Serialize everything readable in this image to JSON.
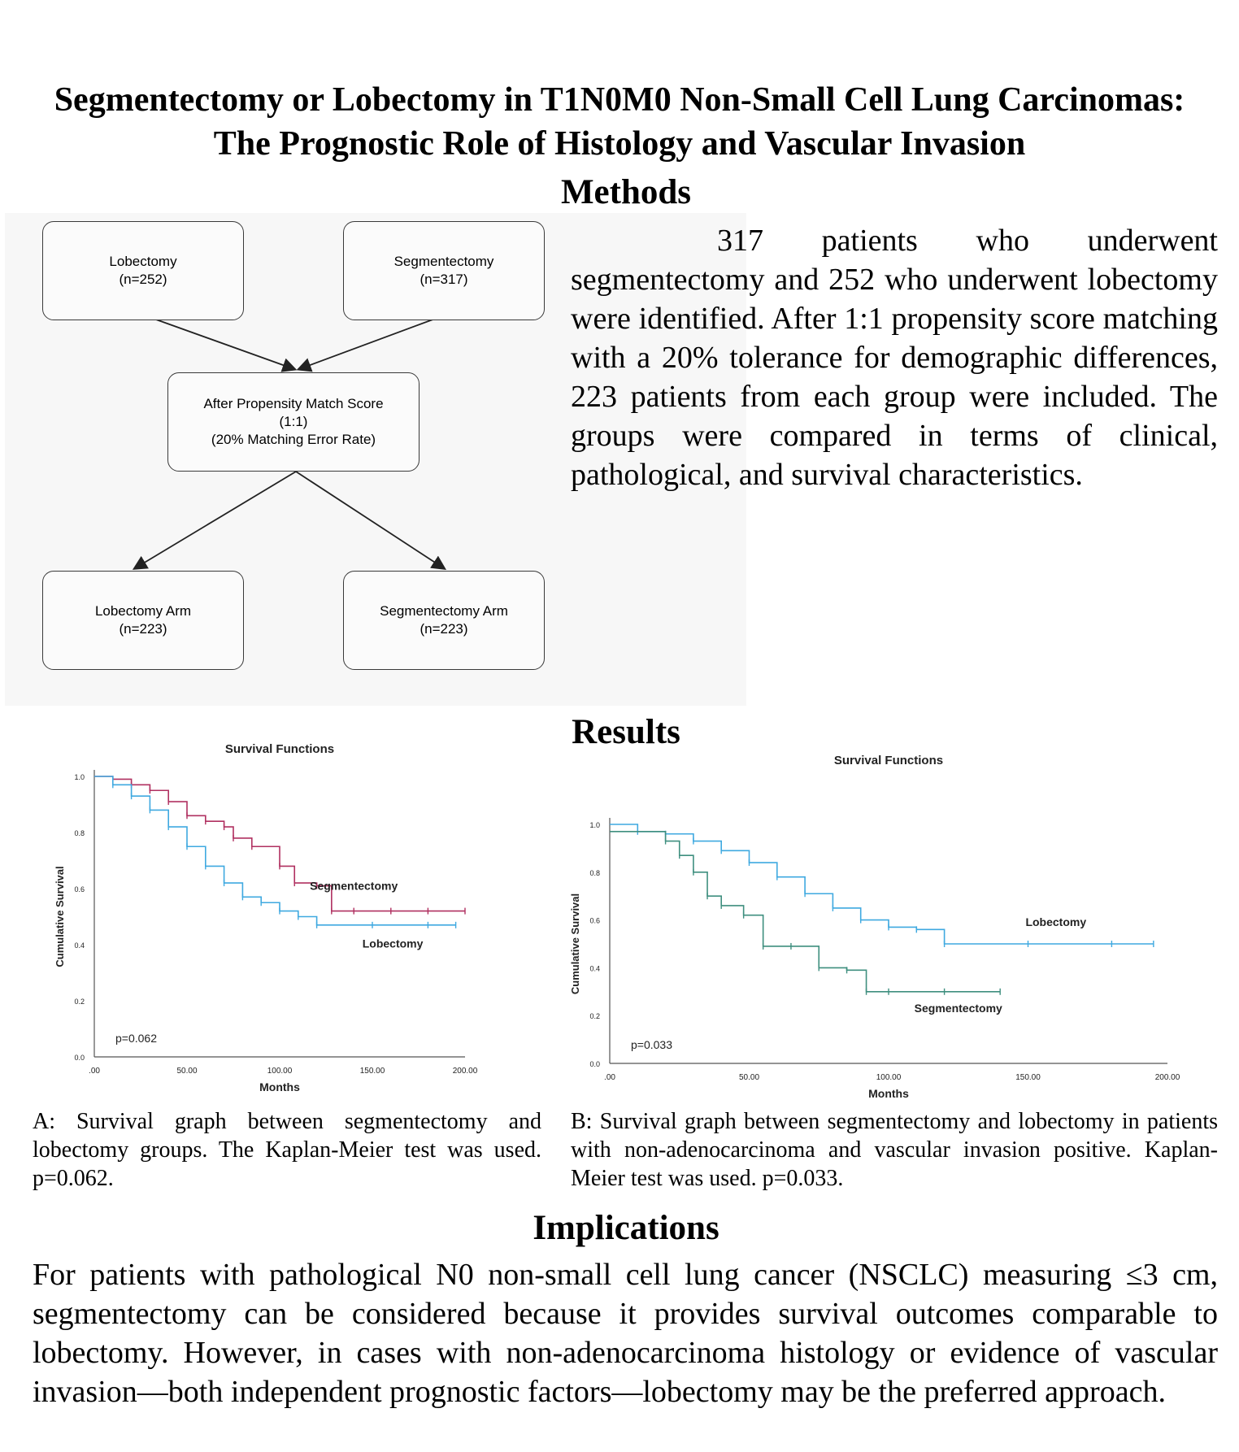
{
  "title": {
    "line1": "Segmentectomy or Lobectomy in T1N0M0 Non-Small Cell Lung Carcinomas:",
    "line2": "The Prognostic Role of Histology and Vascular Invasion"
  },
  "methods": {
    "heading": "Methods",
    "text": "317 patients who underwent segmentectomy and 252 who underwent lobectomy were identified. After 1:1 propensity score matching with a 20% tolerance for demographic differences, 223 patients from each group were included. The groups were compared in terms of clinical, pathological, and survival characteristics."
  },
  "flowchart": {
    "lobectomy": {
      "line1": "Lobectomy",
      "line2": "(n=252)"
    },
    "segmentectomy": {
      "line1": "Segmentectomy",
      "line2": "(n=317)"
    },
    "match": {
      "line1": "After Propensity Match Score",
      "line2": "(1:1)",
      "line3": "(20% Matching Error Rate)"
    },
    "lobectomy_arm": {
      "line1": "Lobectomy Arm",
      "line2": "(n=223)"
    },
    "segmentectomy_arm": {
      "line1": "Segmentectomy Arm",
      "line2": "(n=223)"
    }
  },
  "results": {
    "heading": "Results",
    "caption_a": "A: Survival graph between segmentectomy and lobectomy groups. The Kaplan-Meier test was used. p=0.062.",
    "caption_b": "B: Survival graph between segmentectomy and lobectomy in patients with non-adenocarcinoma and vascular invasion positive. Kaplan-Meier test was used. p=0.033."
  },
  "implications": {
    "heading": "Implications",
    "text": "For patients with pathological N0 non-small cell lung cancer (NSCLC) measuring ≤3 cm, segmentectomy can be considered because it provides survival outcomes comparable to lobectomy. However, in cases with non-adenocarcinoma histology or evidence of vascular invasion—both independent prognostic factors—lobectomy may be the preferred approach."
  },
  "colors": {
    "segmentectomy_a": "#b03060",
    "lobectomy": "#3fa9e0",
    "segmentectomy_b": "#3f8f7f"
  },
  "chart_data": [
    {
      "type": "line",
      "title": "Survival Functions",
      "xlabel": "Months",
      "ylabel": "Cumulative Survival",
      "xlim": [
        0,
        200
      ],
      "ylim": [
        0,
        1.0
      ],
      "xticks": [
        ".00",
        "50.00",
        "100.00",
        "150.00",
        "200.00"
      ],
      "yticks": [
        "0.0",
        "0.2",
        "0.4",
        "0.6",
        "0.8",
        "1.0"
      ],
      "annotation": "p=0.062",
      "series": [
        {
          "name": "Segmentectomy",
          "color": "#b03060",
          "x": [
            0,
            10,
            20,
            30,
            40,
            50,
            60,
            70,
            75,
            85,
            100,
            108,
            120,
            128,
            140,
            160,
            180,
            200
          ],
          "y": [
            1.0,
            0.99,
            0.97,
            0.95,
            0.91,
            0.86,
            0.84,
            0.82,
            0.78,
            0.75,
            0.68,
            0.62,
            0.61,
            0.52,
            0.52,
            0.52,
            0.52,
            0.52
          ]
        },
        {
          "name": "Lobectomy",
          "color": "#3fa9e0",
          "x": [
            0,
            10,
            20,
            30,
            40,
            50,
            60,
            70,
            80,
            90,
            100,
            110,
            120,
            150,
            180,
            195
          ],
          "y": [
            1.0,
            0.97,
            0.93,
            0.88,
            0.82,
            0.75,
            0.68,
            0.62,
            0.57,
            0.55,
            0.52,
            0.5,
            0.47,
            0.47,
            0.47,
            0.47
          ]
        }
      ]
    },
    {
      "type": "line",
      "title": "Survival Functions",
      "xlabel": "Months",
      "ylabel": "Cumulative Survival",
      "xlim": [
        0,
        200
      ],
      "ylim": [
        0,
        1.0
      ],
      "xticks": [
        ".00",
        "50.00",
        "100.00",
        "150.00",
        "200.00"
      ],
      "yticks": [
        "0.0",
        "0.2",
        "0.4",
        "0.6",
        "0.8",
        "1.0"
      ],
      "annotation": "p=0.033",
      "series": [
        {
          "name": "Lobectomy",
          "color": "#3fa9e0",
          "x": [
            0,
            10,
            20,
            30,
            40,
            50,
            60,
            70,
            80,
            90,
            100,
            110,
            120,
            150,
            180,
            195
          ],
          "y": [
            1.0,
            0.97,
            0.96,
            0.93,
            0.89,
            0.84,
            0.78,
            0.71,
            0.65,
            0.6,
            0.57,
            0.56,
            0.5,
            0.5,
            0.5,
            0.5
          ]
        },
        {
          "name": "Segmentectomy",
          "color": "#3f8f7f",
          "x": [
            0,
            20,
            25,
            30,
            35,
            40,
            48,
            55,
            65,
            75,
            85,
            92,
            100,
            120,
            140
          ],
          "y": [
            0.97,
            0.93,
            0.87,
            0.8,
            0.7,
            0.66,
            0.62,
            0.49,
            0.49,
            0.4,
            0.39,
            0.3,
            0.3,
            0.3,
            0.3
          ]
        }
      ]
    }
  ]
}
